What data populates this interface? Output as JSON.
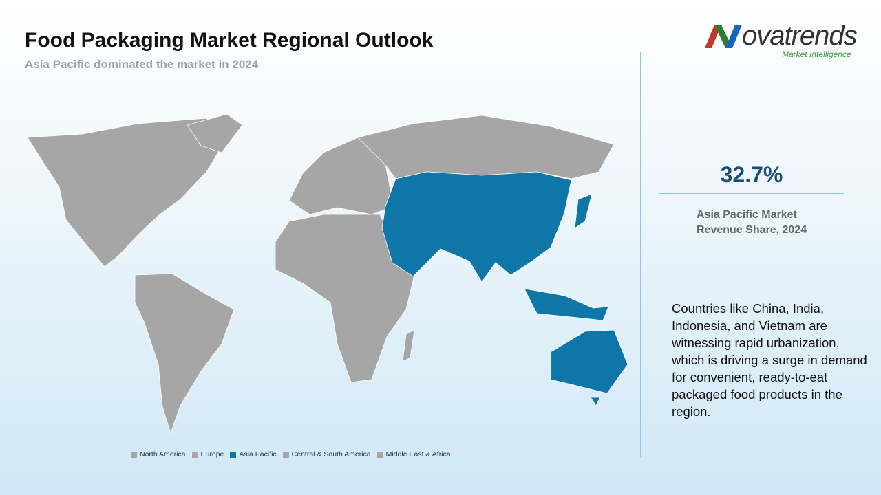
{
  "header": {
    "title": "Food Packaging Market Regional Outlook",
    "subtitle": "Asia Pacific dominated the market in 2024"
  },
  "logo": {
    "name": "ovatrends",
    "tagline": "Market Intelligence"
  },
  "stat": {
    "value": "32.7%",
    "label": "Asia Pacific Market Revenue Share, 2024"
  },
  "description": "Countries like China, India, Indonesia, and Vietnam are witnessing rapid urbanization, which is driving a surge in demand for convenient, ready-to-eat packaged food products in the region.",
  "legend": [
    {
      "name": "North America",
      "color": "#a6a6a6"
    },
    {
      "name": "Europe",
      "color": "#a6a6a6"
    },
    {
      "name": "Asia Pacific",
      "color": "#0e76a8"
    },
    {
      "name": "Central & South America",
      "color": "#a6a6a6"
    },
    {
      "name": "Middle East & Africa",
      "color": "#a6a6a6"
    }
  ]
}
